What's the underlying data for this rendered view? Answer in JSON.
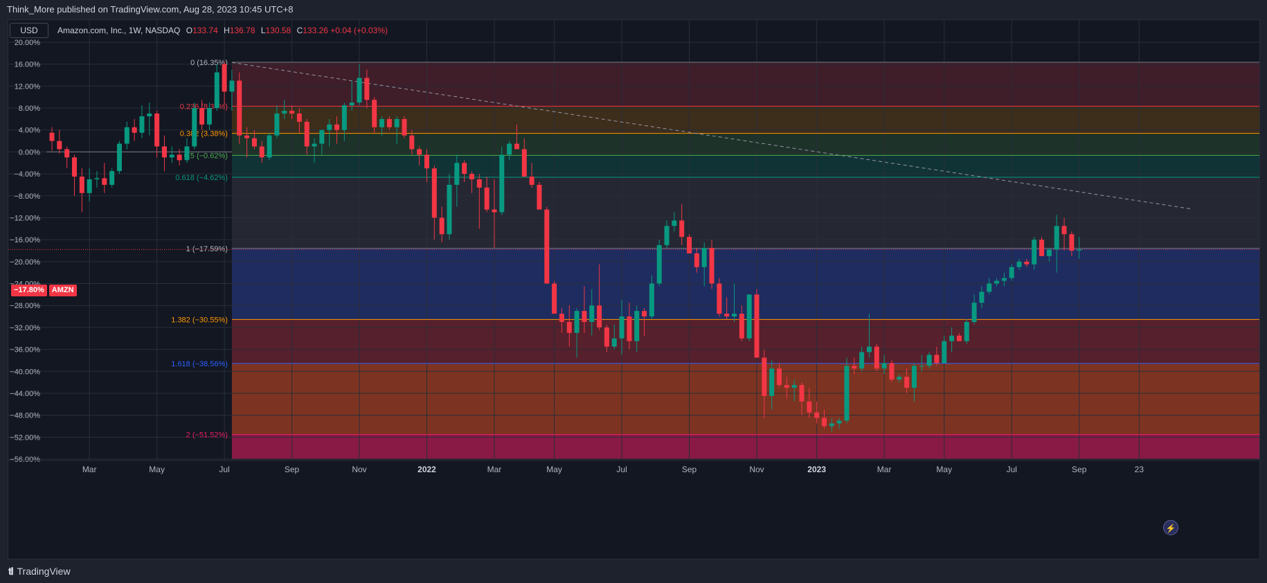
{
  "header": {
    "published_by": "Think_More published on TradingView.com, Aug 28, 2023 10:45 UTC+8"
  },
  "toolbar": {
    "currency": "USD"
  },
  "legend": {
    "symbol": "Amazon.com, Inc., 1W, NASDAQ",
    "open_label": "O",
    "open": "133.74",
    "high_label": "H",
    "high": "136.78",
    "low_label": "L",
    "low": "130.58",
    "close_label": "C",
    "close": "133.26",
    "change": "+0.04 (+0.03%)"
  },
  "price_tag": {
    "value": "−17.80%",
    "symbol": "AMZN"
  },
  "footer": {
    "brand": "TradingView"
  },
  "colors": {
    "up": "#089981",
    "down": "#f23645",
    "background": "#131722"
  },
  "chart_data": {
    "type": "candlestick",
    "y_scale": "percent",
    "ylim": [
      -56,
      20
    ],
    "y_ticks": [
      "20.00%",
      "16.00%",
      "12.00%",
      "8.00%",
      "4.00%",
      "0.00%",
      "−4.00%",
      "−8.00%",
      "−12.00%",
      "−16.00%",
      "−20.00%",
      "−24.00%",
      "−28.00%",
      "−32.00%",
      "−36.00%",
      "−40.00%",
      "−44.00%",
      "−48.00%",
      "−52.00%",
      "−56.00%"
    ],
    "x_ticks": [
      {
        "label": "Mar",
        "week": 5
      },
      {
        "label": "May",
        "week": 14
      },
      {
        "label": "Jul",
        "week": 23
      },
      {
        "label": "Sep",
        "week": 32
      },
      {
        "label": "Nov",
        "week": 41
      },
      {
        "label": "2022",
        "week": 50
      },
      {
        "label": "Mar",
        "week": 59
      },
      {
        "label": "May",
        "week": 67
      },
      {
        "label": "Jul",
        "week": 76
      },
      {
        "label": "Sep",
        "week": 85
      },
      {
        "label": "Nov",
        "week": 94
      },
      {
        "label": "2023",
        "week": 102
      },
      {
        "label": "Mar",
        "week": 111
      },
      {
        "label": "May",
        "week": 119
      },
      {
        "label": "Jul",
        "week": 128
      },
      {
        "label": "Sep",
        "week": 137
      },
      {
        "label": "23",
        "week": 145
      }
    ],
    "candles": [
      [
        3.5,
        4.5,
        0.2,
        2.0
      ],
      [
        2.0,
        4.0,
        -0.3,
        0.5
      ],
      [
        0.5,
        1.0,
        -3.0,
        -1.0
      ],
      [
        -1.0,
        -0.5,
        -8.0,
        -4.5
      ],
      [
        -4.5,
        -3.0,
        -11.0,
        -7.5
      ],
      [
        -7.5,
        -3.0,
        -9.0,
        -5.0
      ],
      [
        -5.0,
        -3.5,
        -6.5,
        -4.8
      ],
      [
        -4.8,
        -2.0,
        -7.5,
        -6.0
      ],
      [
        -6.0,
        -3.0,
        -6.5,
        -3.5
      ],
      [
        -3.5,
        2.0,
        -4.0,
        1.5
      ],
      [
        1.5,
        5.5,
        0.5,
        4.5
      ],
      [
        4.5,
        6.0,
        2.0,
        3.5
      ],
      [
        3.5,
        8.5,
        2.5,
        6.5
      ],
      [
        6.5,
        9.0,
        3.0,
        7.0
      ],
      [
        7.0,
        7.5,
        -1.0,
        1.0
      ],
      [
        1.0,
        3.0,
        -3.5,
        -1.0
      ],
      [
        -1.0,
        1.0,
        -2.0,
        -0.5
      ],
      [
        -0.5,
        0.5,
        -2.5,
        -1.5
      ],
      [
        -1.5,
        2.5,
        -2.0,
        1.0
      ],
      [
        1.0,
        9.0,
        0.5,
        8.0
      ],
      [
        8.0,
        9.5,
        4.0,
        5.0
      ],
      [
        5.0,
        9.0,
        4.0,
        8.0
      ],
      [
        8.0,
        16.0,
        7.5,
        14.5
      ],
      [
        16.0,
        16.5,
        8.5,
        11.0
      ],
      [
        11.0,
        15.0,
        7.5,
        13.0
      ],
      [
        13.0,
        14.5,
        1.5,
        3.0
      ],
      [
        3.0,
        4.5,
        -1.0,
        2.5
      ],
      [
        2.5,
        4.0,
        0.5,
        1.0
      ],
      [
        1.0,
        2.0,
        -2.0,
        -1.0
      ],
      [
        -1.0,
        3.5,
        -1.5,
        3.0
      ],
      [
        3.0,
        8.5,
        2.5,
        7.0
      ],
      [
        7.0,
        9.5,
        6.0,
        7.5
      ],
      [
        7.5,
        8.5,
        6.0,
        7.0
      ],
      [
        7.0,
        8.0,
        3.5,
        5.5
      ],
      [
        5.5,
        6.0,
        -0.5,
        1.0
      ],
      [
        1.0,
        2.5,
        -2.0,
        1.5
      ],
      [
        1.5,
        4.0,
        -0.5,
        4.0
      ],
      [
        4.0,
        6.0,
        1.0,
        5.0
      ],
      [
        5.0,
        6.5,
        1.5,
        4.0
      ],
      [
        4.0,
        9.0,
        2.0,
        8.5
      ],
      [
        8.5,
        13.0,
        7.5,
        9.0
      ],
      [
        9.0,
        16.0,
        8.5,
        13.5
      ],
      [
        13.5,
        15.0,
        8.0,
        9.5
      ],
      [
        9.5,
        10.0,
        3.5,
        4.5
      ],
      [
        4.5,
        6.5,
        3.0,
        6.0
      ],
      [
        6.0,
        6.5,
        4.0,
        4.5
      ],
      [
        4.5,
        6.5,
        1.5,
        6.0
      ],
      [
        6.0,
        6.5,
        2.5,
        3.0
      ],
      [
        3.0,
        4.0,
        -0.5,
        0.5
      ],
      [
        0.5,
        1.0,
        -2.5,
        -0.5
      ],
      [
        -0.5,
        0.5,
        -5.5,
        -3.0
      ],
      [
        -3.0,
        -2.5,
        -16.0,
        -12.0
      ],
      [
        -12.0,
        -10.0,
        -16.5,
        -15.0
      ],
      [
        -15.0,
        -4.0,
        -16.0,
        -6.0
      ],
      [
        -6.0,
        -0.5,
        -10.0,
        -2.0
      ],
      [
        -2.0,
        -1.5,
        -5.5,
        -4.0
      ],
      [
        -4.0,
        -3.5,
        -7.5,
        -5.0
      ],
      [
        -5.0,
        -4.0,
        -14.0,
        -6.5
      ],
      [
        -6.5,
        -4.5,
        -11.0,
        -10.5
      ],
      [
        -10.5,
        -5.0,
        -17.5,
        -11.0
      ],
      [
        -11.0,
        1.0,
        -11.5,
        -0.5
      ],
      [
        -0.5,
        2.0,
        -1.5,
        1.5
      ],
      [
        1.5,
        5.0,
        0.5,
        0.5
      ],
      [
        0.5,
        2.5,
        -4.5,
        -4.5
      ],
      [
        -4.5,
        -2.0,
        -6.5,
        -6.0
      ],
      [
        -6.0,
        -5.5,
        -10.5,
        -10.5
      ],
      [
        -10.5,
        -10.0,
        -24.0,
        -24.0
      ],
      [
        -24.0,
        -23.5,
        -29.5,
        -29.5
      ],
      [
        -29.5,
        -28.5,
        -33.0,
        -31.0
      ],
      [
        -31.0,
        -28.0,
        -35.5,
        -33.0
      ],
      [
        -33.0,
        -28.5,
        -37.5,
        -29.0
      ],
      [
        -29.0,
        -24.5,
        -33.0,
        -31.0
      ],
      [
        -31.0,
        -25.0,
        -33.5,
        -28.0
      ],
      [
        -28.0,
        -20.5,
        -32.5,
        -32.0
      ],
      [
        -32.0,
        -31.5,
        -36.5,
        -35.5
      ],
      [
        -35.5,
        -31.5,
        -36.0,
        -34.0
      ],
      [
        -34.0,
        -27.0,
        -37.0,
        -30.0
      ],
      [
        -30.0,
        -27.5,
        -36.0,
        -34.5
      ],
      [
        -34.5,
        -28.0,
        -36.5,
        -29.0
      ],
      [
        -29.0,
        -28.5,
        -33.5,
        -30.0
      ],
      [
        -30.0,
        -22.5,
        -30.5,
        -24.0
      ],
      [
        -24.0,
        -16.0,
        -24.5,
        -17.0
      ],
      [
        -17.0,
        -12.5,
        -17.5,
        -13.5
      ],
      [
        -13.5,
        -11.0,
        -14.5,
        -12.5
      ],
      [
        -12.5,
        -9.5,
        -17.0,
        -15.5
      ],
      [
        -15.5,
        -15.0,
        -18.5,
        -18.5
      ],
      [
        -18.5,
        -17.5,
        -22.0,
        -21.0
      ],
      [
        -21.0,
        -16.5,
        -24.5,
        -17.5
      ],
      [
        -17.5,
        -16.0,
        -25.0,
        -24.0
      ],
      [
        -24.0,
        -23.0,
        -30.0,
        -29.5
      ],
      [
        -29.5,
        -26.5,
        -30.5,
        -30.0
      ],
      [
        -30.0,
        -24.0,
        -31.0,
        -29.5
      ],
      [
        -29.5,
        -28.0,
        -34.5,
        -34.0
      ],
      [
        -34.0,
        -26.0,
        -34.5,
        -26.0
      ],
      [
        -26.0,
        -25.0,
        -37.5,
        -37.5
      ],
      [
        -37.5,
        -36.0,
        -48.5,
        -44.5
      ],
      [
        -44.5,
        -38.0,
        -47.0,
        -39.5
      ],
      [
        -39.5,
        -38.5,
        -43.0,
        -42.5
      ],
      [
        -42.5,
        -41.0,
        -45.0,
        -43.0
      ],
      [
        -43.0,
        -41.5,
        -45.5,
        -42.5
      ],
      [
        -42.5,
        -42.0,
        -48.0,
        -45.5
      ],
      [
        -45.5,
        -43.0,
        -48.5,
        -47.5
      ],
      [
        -47.5,
        -45.5,
        -49.5,
        -48.5
      ],
      [
        -48.5,
        -47.0,
        -50.5,
        -50.0
      ],
      [
        -50.0,
        -48.5,
        -51.0,
        -49.5
      ],
      [
        -49.5,
        -48.5,
        -50.5,
        -49.0
      ],
      [
        -49.0,
        -37.5,
        -49.5,
        -39.0
      ],
      [
        -39.0,
        -37.5,
        -40.5,
        -39.5
      ],
      [
        -39.5,
        -35.5,
        -40.0,
        -36.5
      ],
      [
        -36.5,
        -29.5,
        -37.5,
        -35.5
      ],
      [
        -35.5,
        -35.0,
        -40.0,
        -39.5
      ],
      [
        -39.5,
        -37.0,
        -40.5,
        -38.5
      ],
      [
        -38.5,
        -38.0,
        -42.0,
        -41.5
      ],
      [
        -41.5,
        -40.5,
        -42.0,
        -41.0
      ],
      [
        -41.0,
        -39.5,
        -44.0,
        -43.0
      ],
      [
        -43.0,
        -38.5,
        -45.5,
        -39.0
      ],
      [
        -39.0,
        -37.0,
        -40.0,
        -39.0
      ],
      [
        -39.0,
        -36.5,
        -39.5,
        -37.0
      ],
      [
        -37.0,
        -35.5,
        -39.0,
        -38.5
      ],
      [
        -38.5,
        -33.5,
        -38.5,
        -34.5
      ],
      [
        -34.5,
        -32.0,
        -36.5,
        -33.5
      ],
      [
        -33.5,
        -33.0,
        -34.5,
        -34.5
      ],
      [
        -34.5,
        -30.5,
        -35.0,
        -31.0
      ],
      [
        -31.0,
        -26.0,
        -31.5,
        -27.5
      ],
      [
        -27.5,
        -24.5,
        -28.5,
        -25.5
      ],
      [
        -25.5,
        -23.0,
        -26.0,
        -24.0
      ],
      [
        -24.0,
        -23.0,
        -24.5,
        -23.5
      ],
      [
        -23.5,
        -22.0,
        -24.5,
        -23.0
      ],
      [
        -23.0,
        -20.5,
        -23.5,
        -21.0
      ],
      [
        -21.0,
        -19.5,
        -21.5,
        -20.0
      ],
      [
        -20.0,
        -19.5,
        -21.0,
        -20.5
      ],
      [
        -20.5,
        -15.5,
        -21.5,
        -16.0
      ],
      [
        -16.0,
        -15.5,
        -19.0,
        -19.0
      ],
      [
        -19.0,
        -17.5,
        -20.0,
        -17.8
      ],
      [
        -17.8,
        -11.5,
        -22.0,
        -13.5
      ],
      [
        -13.5,
        -12.0,
        -18.0,
        -15.0
      ],
      [
        -15.0,
        -14.5,
        -19.0,
        -18.0
      ],
      [
        -18.0,
        -15.5,
        -19.5,
        -17.8
      ]
    ],
    "trend_line": {
      "from": {
        "week": 24,
        "value": 16.3
      },
      "to": {
        "week": 152,
        "value": -10.4
      }
    },
    "fib_levels": [
      {
        "ratio": "0",
        "value": 16.35,
        "label": "0 (16.35%)",
        "line": "#787b86",
        "fill": "rgba(242,54,69,0.20)"
      },
      {
        "ratio": "0.236",
        "value": 8.34,
        "label": "0.236 (8.34%)",
        "line": "#f23645",
        "fill": "rgba(255,152,0,0.18)"
      },
      {
        "ratio": "0.382",
        "value": 3.38,
        "label": "0.382 (3.38%)",
        "line": "#ff9800",
        "fill": "rgba(76,175,80,0.18)"
      },
      {
        "ratio": "0.5",
        "value": -0.62,
        "label": "0.5 (−0.62%)",
        "line": "#4caf50",
        "fill": "rgba(8,153,129,0.22)"
      },
      {
        "ratio": "0.618",
        "value": -4.62,
        "label": "0.618 (−4.62%)",
        "line": "#089981",
        "fill": "rgba(120,123,134,0.18)"
      },
      {
        "ratio": "1",
        "value": -17.59,
        "label": "1 (−17.59%)",
        "line": "#787b86",
        "fill": "rgba(41,62,145,0.55)"
      },
      {
        "ratio": "1.382",
        "value": -30.55,
        "label": "1.382 (−30.55%)",
        "line": "#ff9800",
        "fill": "rgba(242,54,69,0.30)"
      },
      {
        "ratio": "1.618",
        "value": -38.56,
        "label": "1.618 (−38.56%)",
        "line": "#2962ff",
        "fill": "rgba(255,87,34,0.45)"
      },
      {
        "ratio": "2",
        "value": -51.52,
        "label": "2 (−51.52%)",
        "line": "#e91e63",
        "fill": "rgba(233,30,99,0.55)"
      }
    ],
    "fib_bottom": -56,
    "fib_start_week": 24,
    "baseline": 0,
    "current_price": -17.8
  }
}
